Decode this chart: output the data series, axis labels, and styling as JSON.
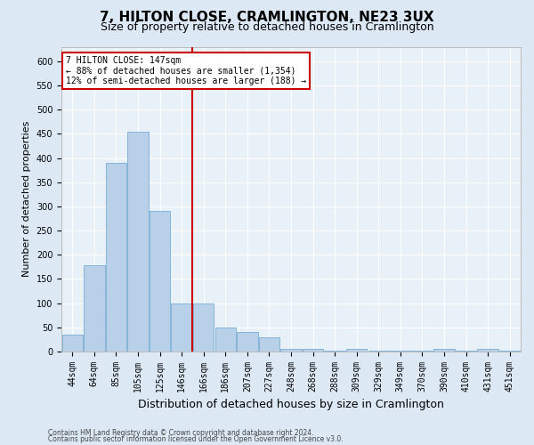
{
  "title": "7, HILTON CLOSE, CRAMLINGTON, NE23 3UX",
  "subtitle": "Size of property relative to detached houses in Cramlington",
  "xlabel": "Distribution of detached houses by size in Cramlington",
  "ylabel": "Number of detached properties",
  "footer_line1": "Contains HM Land Registry data © Crown copyright and database right 2024.",
  "footer_line2": "Contains public sector information licensed under the Open Government Licence v3.0.",
  "bar_labels": [
    "44sqm",
    "64sqm",
    "85sqm",
    "105sqm",
    "125sqm",
    "146sqm",
    "166sqm",
    "186sqm",
    "207sqm",
    "227sqm",
    "248sqm",
    "268sqm",
    "288sqm",
    "309sqm",
    "329sqm",
    "349sqm",
    "370sqm",
    "390sqm",
    "410sqm",
    "431sqm",
    "451sqm"
  ],
  "bar_values": [
    35,
    178,
    390,
    455,
    290,
    100,
    100,
    50,
    40,
    30,
    5,
    5,
    2,
    5,
    2,
    2,
    2,
    5,
    2,
    5,
    2
  ],
  "bar_color": "#b8d0e8",
  "bar_edge_color": "#7aadd4",
  "vline_color": "#cc0000",
  "vline_x_index": 5.5,
  "annotation_text": "7 HILTON CLOSE: 147sqm\n← 88% of detached houses are smaller (1,354)\n12% of semi-detached houses are larger (188) →",
  "annotation_box_color": "#ffffff",
  "annotation_border_color": "#cc0000",
  "ylim": [
    0,
    630
  ],
  "yticks": [
    0,
    50,
    100,
    150,
    200,
    250,
    300,
    350,
    400,
    450,
    500,
    550,
    600
  ],
  "bg_color": "#dce9f5",
  "plot_bg_color": "#e8f1f8",
  "title_fontsize": 11,
  "subtitle_fontsize": 9,
  "tick_fontsize": 7,
  "ylabel_fontsize": 8,
  "xlabel_fontsize": 9,
  "footer_fontsize": 5.5
}
